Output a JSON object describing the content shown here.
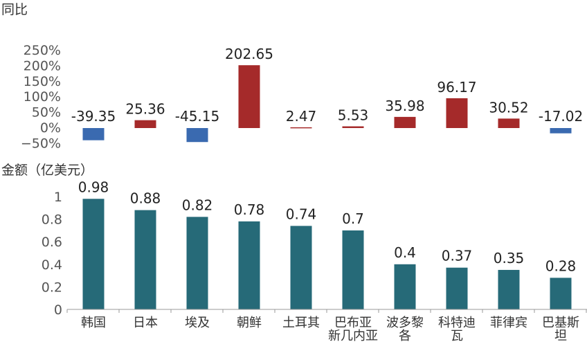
{
  "chart_data": [
    {
      "type": "bar",
      "title": "",
      "ylabel": "同比",
      "xlabel": "",
      "categories": [
        "韩国",
        "日本",
        "埃及",
        "朝鲜",
        "土耳其",
        "巴布亚新几内亚",
        "波多黎各",
        "科特迪瓦",
        "菲律宾",
        "巴基斯坦"
      ],
      "values": [
        -39.35,
        25.36,
        -45.15,
        202.65,
        2.47,
        5.53,
        35.98,
        96.17,
        30.52,
        -17.02
      ],
      "data_labels": [
        "-39.35",
        "25.36",
        "-45.15",
        "202.65",
        "2.47",
        "5.53",
        "35.98",
        "96.17",
        "30.52",
        "-17.02"
      ],
      "ylim": [
        -50,
        250
      ],
      "y_ticks": [
        "250%",
        "200%",
        "150%",
        "100%",
        "50%",
        "0%",
        "−50%"
      ],
      "grid": false,
      "colors": {
        "positive": "#a52a2a",
        "negative": "#3a6ab0"
      }
    },
    {
      "type": "bar",
      "title": "",
      "ylabel": "金额（亿美元）",
      "xlabel": "",
      "categories": [
        "韩国",
        "日本",
        "埃及",
        "朝鲜",
        "土耳其",
        "巴布亚新几内亚",
        "波多黎各",
        "科特迪瓦",
        "菲律宾",
        "巴基斯坦"
      ],
      "category_labels": [
        [
          "韩国"
        ],
        [
          "日本"
        ],
        [
          "埃及"
        ],
        [
          "朝鲜"
        ],
        [
          "土耳其"
        ],
        [
          "巴布亚",
          "新几内亚"
        ],
        [
          "波多黎",
          "各"
        ],
        [
          "科特迪",
          "瓦"
        ],
        [
          "菲律宾"
        ],
        [
          "巴基斯",
          "坦"
        ]
      ],
      "values": [
        0.98,
        0.88,
        0.82,
        0.78,
        0.74,
        0.7,
        0.4,
        0.37,
        0.35,
        0.28
      ],
      "data_labels": [
        "0.98",
        "0.88",
        "0.82",
        "0.78",
        "0.74",
        "0.7",
        "0.4",
        "0.37",
        "0.35",
        "0.28"
      ],
      "ylim": [
        0,
        1.2
      ],
      "y_ticks": [
        "1",
        "0.8",
        "0.6",
        "0.4",
        "0.2",
        "0"
      ],
      "grid": false,
      "colors": {
        "bar": "#266a78"
      }
    }
  ]
}
